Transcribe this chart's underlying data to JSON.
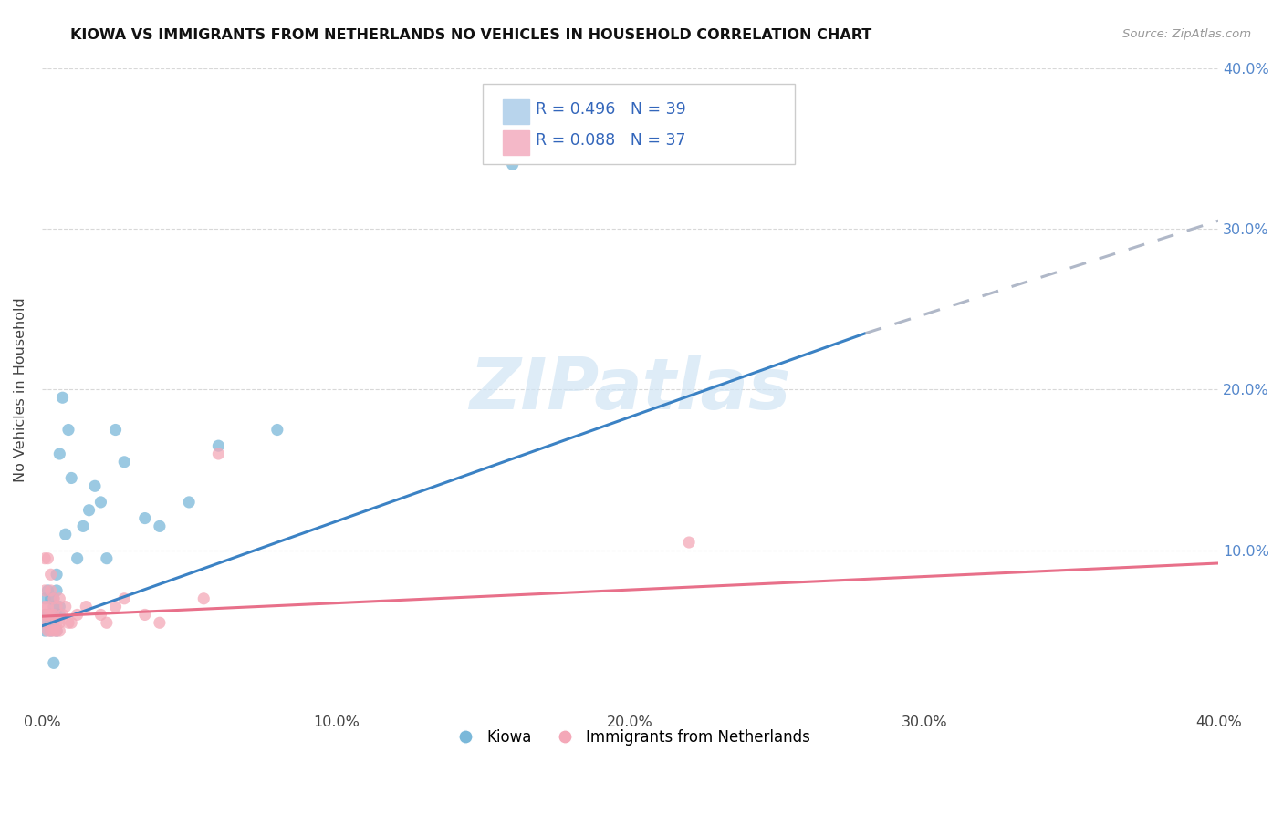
{
  "title": "KIOWA VS IMMIGRANTS FROM NETHERLANDS NO VEHICLES IN HOUSEHOLD CORRELATION CHART",
  "source": "Source: ZipAtlas.com",
  "ylabel": "No Vehicles in Household",
  "xlim": [
    0.0,
    0.4
  ],
  "ylim": [
    0.0,
    0.4
  ],
  "xtick_vals": [
    0.0,
    0.1,
    0.2,
    0.3,
    0.4
  ],
  "xtick_labels": [
    "0.0%",
    "10.0%",
    "20.0%",
    "30.0%",
    "40.0%"
  ],
  "ytick_vals": [
    0.1,
    0.2,
    0.3,
    0.4
  ],
  "ytick_labels": [
    "10.0%",
    "20.0%",
    "30.0%",
    "40.0%"
  ],
  "series_blue": {
    "x": [
      0.001,
      0.001,
      0.001,
      0.002,
      0.002,
      0.002,
      0.003,
      0.003,
      0.003,
      0.003,
      0.004,
      0.004,
      0.004,
      0.004,
      0.005,
      0.005,
      0.005,
      0.005,
      0.006,
      0.006,
      0.006,
      0.007,
      0.008,
      0.009,
      0.01,
      0.012,
      0.014,
      0.016,
      0.018,
      0.02,
      0.022,
      0.025,
      0.028,
      0.035,
      0.04,
      0.05,
      0.06,
      0.08,
      0.16
    ],
    "y": [
      0.06,
      0.07,
      0.05,
      0.055,
      0.06,
      0.075,
      0.05,
      0.06,
      0.07,
      0.055,
      0.03,
      0.055,
      0.065,
      0.07,
      0.05,
      0.06,
      0.075,
      0.085,
      0.06,
      0.065,
      0.16,
      0.195,
      0.11,
      0.175,
      0.145,
      0.095,
      0.115,
      0.125,
      0.14,
      0.13,
      0.095,
      0.175,
      0.155,
      0.12,
      0.115,
      0.13,
      0.165,
      0.175,
      0.34
    ]
  },
  "series_pink": {
    "x": [
      0.001,
      0.001,
      0.001,
      0.001,
      0.001,
      0.002,
      0.002,
      0.002,
      0.002,
      0.003,
      0.003,
      0.003,
      0.003,
      0.004,
      0.004,
      0.004,
      0.005,
      0.005,
      0.005,
      0.006,
      0.006,
      0.006,
      0.007,
      0.008,
      0.009,
      0.01,
      0.012,
      0.015,
      0.02,
      0.022,
      0.025,
      0.028,
      0.035,
      0.04,
      0.055,
      0.06,
      0.22
    ],
    "y": [
      0.055,
      0.06,
      0.065,
      0.075,
      0.095,
      0.05,
      0.06,
      0.065,
      0.095,
      0.05,
      0.06,
      0.075,
      0.085,
      0.05,
      0.06,
      0.07,
      0.05,
      0.055,
      0.065,
      0.05,
      0.055,
      0.07,
      0.06,
      0.065,
      0.055,
      0.055,
      0.06,
      0.065,
      0.06,
      0.055,
      0.065,
      0.07,
      0.06,
      0.055,
      0.07,
      0.16,
      0.105
    ]
  },
  "blue_line_solid": {
    "x0": 0.0,
    "x1": 0.28,
    "y0": 0.053,
    "y1": 0.235
  },
  "blue_line_dash": {
    "x0": 0.28,
    "x1": 0.4,
    "y0": 0.235,
    "y1": 0.305
  },
  "pink_line": {
    "x0": 0.0,
    "x1": 0.4,
    "y0": 0.059,
    "y1": 0.092
  },
  "dot_color_blue": "#7ab8d9",
  "dot_color_pink": "#f4a8b8",
  "line_color_blue": "#3b82c4",
  "line_color_pink": "#e8708a",
  "line_dash_color": "#b0b8c8",
  "legend_blue_fill": "#b8d4ec",
  "legend_pink_fill": "#f4b8c8",
  "legend_text_color": "#3366bb",
  "watermark_text": "ZIPatlas",
  "watermark_color": "#d0e4f4",
  "background_color": "#ffffff",
  "grid_color": "#d8d8d8",
  "title_color": "#111111",
  "source_color": "#999999",
  "ylabel_color": "#444444",
  "right_tick_color": "#5588cc",
  "bottom_legend": [
    "Kiowa",
    "Immigrants from Netherlands"
  ]
}
